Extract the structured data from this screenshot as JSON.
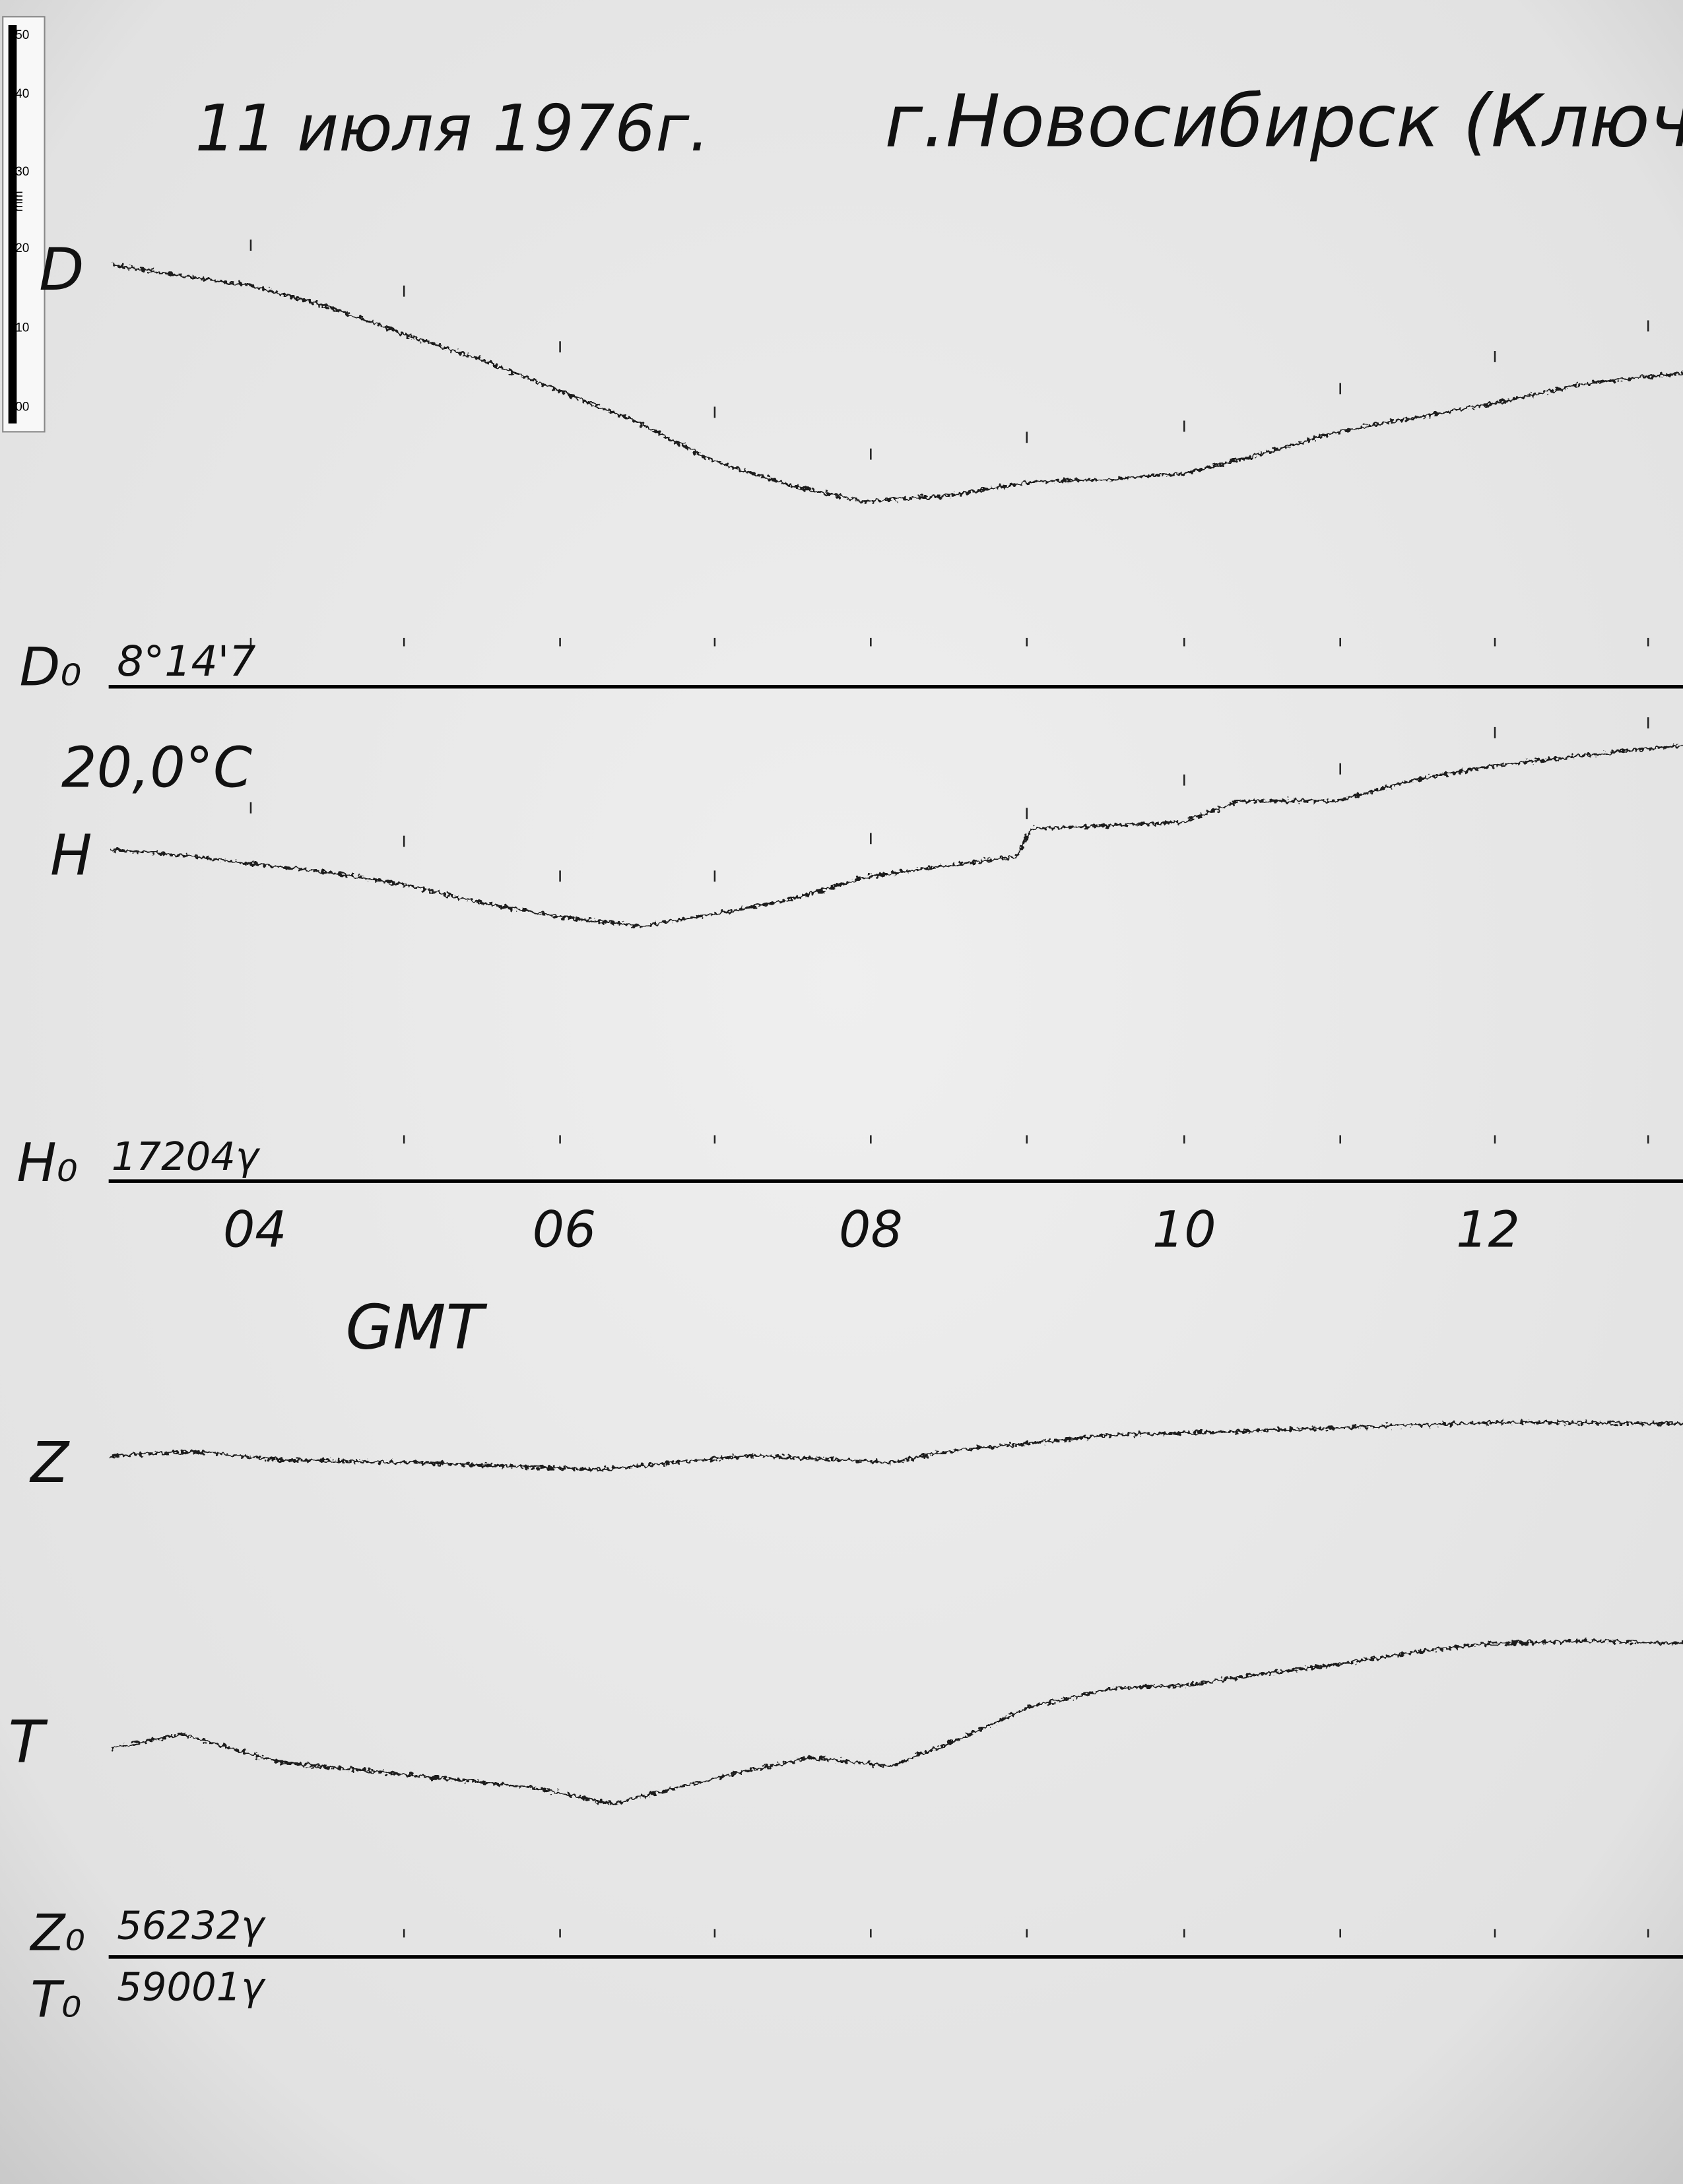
{
  "header": {
    "date": "11 июля 1976г.",
    "place": "г.Новосибирск (Ключи)"
  },
  "ruler": {
    "ticks": [
      "50",
      "40",
      "30",
      "20",
      "10",
      "00"
    ],
    "unit": "mm"
  },
  "panels": {
    "d": {
      "label": "D",
      "base_label": "D₀",
      "base_value": "8°14'7"
    },
    "h": {
      "temperature": "20,0°C",
      "label": "H",
      "base_label": "H₀",
      "base_value": "17204γ"
    },
    "z": {
      "label": "Z",
      "base_label": "Z₀",
      "base_value": "56232γ"
    },
    "t": {
      "label": "T",
      "base_label": "T₀",
      "base_value": "59001γ"
    }
  },
  "time_axis": {
    "labels": [
      "04",
      "06",
      "08",
      "10",
      "12"
    ],
    "unit": "GMT"
  }
}
